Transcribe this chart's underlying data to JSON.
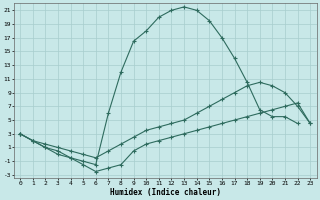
{
  "xlabel": "Humidex (Indice chaleur)",
  "bg_color": "#c8e8e8",
  "line_color": "#2e6b5e",
  "grid_color": "#a8cece",
  "xlim": [
    -0.5,
    23.5
  ],
  "ylim": [
    -3.5,
    22
  ],
  "xticks": [
    0,
    1,
    2,
    3,
    4,
    5,
    6,
    7,
    8,
    9,
    10,
    11,
    12,
    13,
    14,
    15,
    16,
    17,
    18,
    19,
    20,
    21,
    22,
    23
  ],
  "yticks": [
    -3,
    -1,
    1,
    3,
    5,
    7,
    9,
    11,
    13,
    15,
    17,
    19,
    21
  ],
  "curve1_x": [
    0,
    1,
    2,
    3,
    4,
    5,
    6,
    7,
    8,
    9,
    10,
    11,
    12,
    13,
    14,
    15,
    16,
    17,
    18,
    19,
    20,
    21,
    22,
    23
  ],
  "curve1_y": [
    3.0,
    2.0,
    1.0,
    0.5,
    -0.5,
    -1.0,
    -1.5,
    6.0,
    12.0,
    16.5,
    18.0,
    20.0,
    21.0,
    21.5,
    21.0,
    19.5,
    17.0,
    14.0,
    10.5,
    6.5,
    5.5,
    5.5,
    4.5
  ],
  "curve1_has_x23": false,
  "curve2_x": [
    0,
    1,
    2,
    3,
    4,
    5,
    6,
    7,
    8,
    9,
    10,
    11,
    12,
    13,
    14,
    15,
    16,
    17,
    18,
    19,
    20,
    21,
    22,
    23
  ],
  "curve2_y": [
    3.0,
    2.0,
    1.5,
    1.0,
    0.5,
    0.0,
    -0.5,
    0.5,
    1.5,
    2.5,
    3.5,
    4.0,
    4.5,
    5.0,
    6.0,
    7.0,
    8.0,
    9.0,
    10.0,
    10.5,
    10.0,
    9.0,
    7.0,
    4.5
  ],
  "curve3_x": [
    0,
    1,
    2,
    3,
    4,
    5,
    6,
    7,
    8,
    9,
    10,
    11,
    12,
    13,
    14,
    15,
    16,
    17,
    18,
    19,
    20,
    21,
    22,
    23
  ],
  "curve3_y": [
    3.0,
    2.0,
    1.0,
    0.0,
    -0.5,
    -1.5,
    -2.5,
    -2.0,
    -1.5,
    0.5,
    1.5,
    2.0,
    2.5,
    3.0,
    3.5,
    4.0,
    4.5,
    5.0,
    5.5,
    6.0,
    6.5,
    7.0,
    7.5,
    4.5
  ]
}
